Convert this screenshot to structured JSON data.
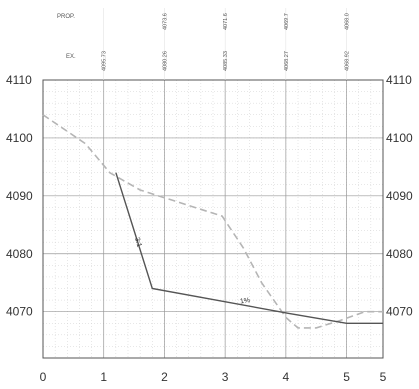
{
  "header": {
    "prop_label": "PROP.",
    "ex_label": "EX.",
    "prop_elevations": [
      "4073.6",
      "4071.6",
      "4069.7",
      "4068.0"
    ],
    "ex_elevations": [
      "4095.73",
      "4080.26",
      "4085.33",
      "4068.27",
      "4068.92"
    ]
  },
  "axes": {
    "y_left_ticks": [
      "4110",
      "4100",
      "4090",
      "4080",
      "4070"
    ],
    "y_right_ticks": [
      "4110",
      "4100",
      "4090",
      "4080",
      "4070"
    ],
    "x_ticks": [
      "0",
      "1",
      "2",
      "3",
      "4",
      "5",
      "5"
    ],
    "y_range": [
      4062,
      4110
    ],
    "x_range": [
      0,
      5.6
    ]
  },
  "profiles": {
    "existing_ground": {
      "style": "dashed",
      "color": "#b5b5b5",
      "points": [
        [
          0,
          4104
        ],
        [
          0.7,
          4099
        ],
        [
          1.1,
          4094
        ],
        [
          1.6,
          4091
        ],
        [
          2.2,
          4089
        ],
        [
          2.95,
          4086.5
        ],
        [
          3.3,
          4081
        ],
        [
          3.6,
          4075
        ],
        [
          4.0,
          4069
        ],
        [
          4.2,
          4067.2
        ],
        [
          4.5,
          4067.2
        ],
        [
          4.9,
          4068.5
        ],
        [
          5.3,
          4070
        ],
        [
          5.6,
          4070
        ]
      ]
    },
    "proposed_grade": {
      "style": "solid",
      "color": "#555555",
      "points": [
        [
          1.2,
          4094
        ],
        [
          1.8,
          4074
        ],
        [
          4.05,
          4069.7
        ],
        [
          5.0,
          4068
        ],
        [
          5.6,
          4068
        ]
      ]
    }
  },
  "annotations": {
    "slope_1": "3:1",
    "slope_2": "1%"
  }
}
